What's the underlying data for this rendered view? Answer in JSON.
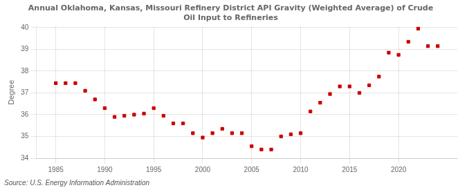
{
  "chart_data": {
    "type": "scatter",
    "title": "Annual Oklahoma, Kansas, Missouri Refinery District API Gravity (Weighted Average) of Crude\nOil Input to Refineries",
    "ylabel": "Degree",
    "annotations": [
      "Source: U.S. Energy Information Administration"
    ],
    "x": [
      1985,
      1986,
      1987,
      1988,
      1989,
      1990,
      1991,
      1992,
      1993,
      1994,
      1995,
      1996,
      1997,
      1998,
      1999,
      2000,
      2001,
      2002,
      2003,
      2004,
      2005,
      2006,
      2007,
      2008,
      2009,
      2010,
      2011,
      2012,
      2013,
      2014,
      2015,
      2016,
      2017,
      2018,
      2019,
      2020,
      2021,
      2022,
      2023,
      2024
    ],
    "values": [
      37.45,
      37.45,
      37.45,
      37.1,
      36.7,
      36.3,
      35.9,
      35.95,
      36.0,
      36.05,
      36.3,
      35.95,
      35.6,
      35.6,
      35.15,
      34.95,
      35.15,
      35.35,
      35.15,
      35.15,
      34.55,
      34.4,
      34.4,
      35.0,
      35.1,
      35.15,
      36.15,
      36.55,
      36.95,
      37.3,
      37.3,
      37.0,
      37.35,
      37.75,
      38.85,
      38.75,
      39.35,
      39.95,
      39.15,
      39.15
    ],
    "color": "#cc0000",
    "marker": "square",
    "xlim": [
      1983.0,
      2026.0
    ],
    "ylim": [
      34,
      40.05
    ],
    "xticks": [
      1985,
      1990,
      1995,
      2000,
      2005,
      2010,
      2015,
      2020
    ],
    "yticks": [
      34,
      35,
      36,
      37,
      38,
      39,
      40
    ],
    "grid": true
  }
}
